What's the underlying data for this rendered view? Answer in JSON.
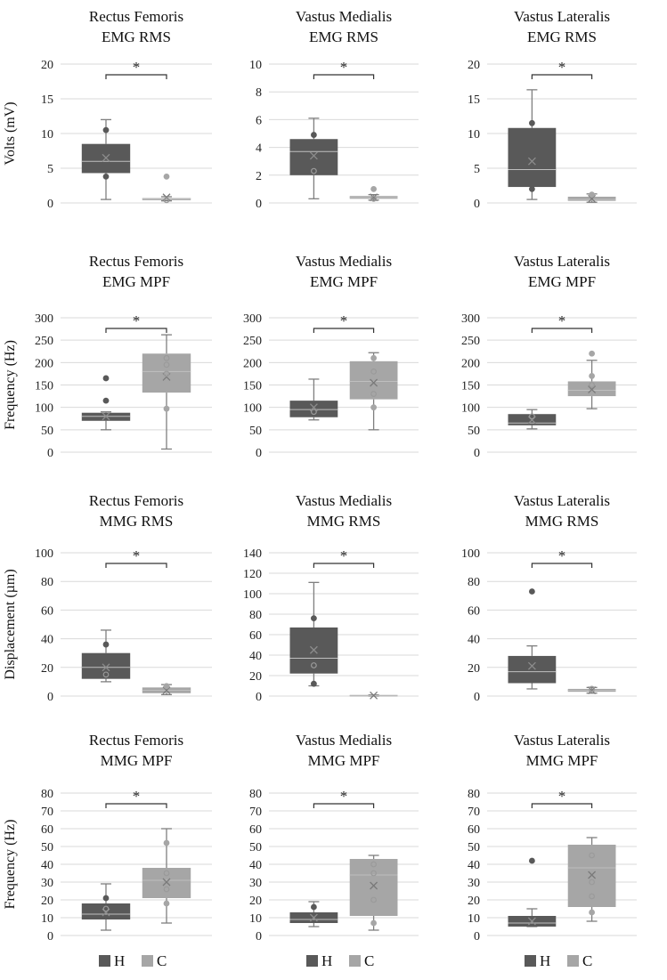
{
  "colors": {
    "H": "#595959",
    "C": "#a6a6a6",
    "grid": "#d9d9d9",
    "whisker": "#7f7f7f",
    "text": "#222222"
  },
  "legend": [
    {
      "key": "H",
      "label": "H"
    },
    {
      "key": "C",
      "label": "C"
    }
  ],
  "rows": [
    {
      "ylabel": "Volts (mV)"
    },
    {
      "ylabel": "Frequency (Hz)"
    },
    {
      "ylabel": "Displacement  (µm)"
    },
    {
      "ylabel": "Frequency (Hz)"
    }
  ],
  "chart_data": [
    {
      "type": "box",
      "title": [
        "Rectus Femoris",
        "EMG RMS"
      ],
      "ylim": [
        0,
        20
      ],
      "ticks": [
        0,
        5,
        10,
        15,
        20
      ],
      "significance": "*",
      "series": [
        {
          "name": "H",
          "min": 0.5,
          "q1": 4.3,
          "median": 6.0,
          "q3": 8.5,
          "max": 12.0,
          "mean": 6.5,
          "points": [
            3.8,
            10.5
          ]
        },
        {
          "name": "C",
          "min": 0.3,
          "q1": 0.4,
          "median": 0.6,
          "q3": 0.7,
          "max": 0.9,
          "mean": 0.8,
          "points": [
            3.8,
            0.4
          ]
        }
      ]
    },
    {
      "type": "box",
      "title": [
        "Vastus Medialis",
        "EMG RMS"
      ],
      "ylim": [
        0,
        10
      ],
      "ticks": [
        0,
        2,
        4,
        6,
        8,
        10
      ],
      "significance": "*",
      "series": [
        {
          "name": "H",
          "min": 0.3,
          "q1": 2.0,
          "median": 3.7,
          "q3": 4.6,
          "max": 6.1,
          "mean": 3.4,
          "points": [
            4.9,
            2.3
          ]
        },
        {
          "name": "C",
          "min": 0.2,
          "q1": 0.3,
          "median": 0.4,
          "q3": 0.5,
          "max": 0.6,
          "mean": 0.4,
          "points": [
            1.0,
            0.3
          ]
        }
      ]
    },
    {
      "type": "box",
      "title": [
        "Vastus Lateralis",
        "EMG RMS"
      ],
      "ylim": [
        0,
        20
      ],
      "ticks": [
        0,
        5,
        10,
        15,
        20
      ],
      "significance": "*",
      "series": [
        {
          "name": "H",
          "min": 0.5,
          "q1": 2.3,
          "median": 4.8,
          "q3": 10.8,
          "max": 16.3,
          "mean": 6.0,
          "points": [
            11.5,
            2.0
          ]
        },
        {
          "name": "C",
          "min": 0.1,
          "q1": 0.3,
          "median": 0.5,
          "q3": 0.9,
          "max": 1.3,
          "mean": 0.6,
          "points": [
            1.2
          ]
        }
      ]
    },
    {
      "type": "box",
      "title": [
        "Rectus Femoris",
        "EMG MPF"
      ],
      "ylim": [
        0,
        300
      ],
      "ticks": [
        0,
        50,
        100,
        150,
        200,
        250,
        300
      ],
      "significance": "*",
      "series": [
        {
          "name": "H",
          "min": 50,
          "q1": 70,
          "median": 80,
          "q3": 88,
          "max": 90,
          "mean": 80,
          "points": [
            165,
            115
          ]
        },
        {
          "name": "C",
          "min": 7,
          "q1": 133,
          "median": 180,
          "q3": 220,
          "max": 262,
          "mean": 168,
          "points": [
            210,
            97,
            195,
            175
          ]
        }
      ]
    },
    {
      "type": "box",
      "title": [
        "Vastus Medialis",
        "EMG MPF"
      ],
      "ylim": [
        0,
        300
      ],
      "ticks": [
        0,
        50,
        100,
        150,
        200,
        250,
        300
      ],
      "significance": "*",
      "series": [
        {
          "name": "H",
          "min": 72,
          "q1": 78,
          "median": 95,
          "q3": 115,
          "max": 163,
          "mean": 100,
          "points": [
            90
          ]
        },
        {
          "name": "C",
          "min": 50,
          "q1": 118,
          "median": 158,
          "q3": 203,
          "max": 222,
          "mean": 155,
          "points": [
            210,
            180,
            100,
            130
          ]
        }
      ]
    },
    {
      "type": "box",
      "title": [
        "Vastus Lateralis",
        "EMG MPF"
      ],
      "ylim": [
        0,
        300
      ],
      "ticks": [
        0,
        50,
        100,
        150,
        200,
        250,
        300
      ],
      "significance": "*",
      "series": [
        {
          "name": "H",
          "min": 52,
          "q1": 60,
          "median": 65,
          "q3": 85,
          "max": 95,
          "mean": 72,
          "points": [
            80
          ]
        },
        {
          "name": "C",
          "min": 97,
          "q1": 125,
          "median": 138,
          "q3": 158,
          "max": 205,
          "mean": 140,
          "points": [
            220,
            170,
            150
          ]
        }
      ]
    },
    {
      "type": "box",
      "title": [
        "Rectus Femoris",
        "MMG RMS"
      ],
      "ylim": [
        0,
        100
      ],
      "ticks": [
        0,
        20,
        40,
        60,
        80,
        100
      ],
      "significance": "*",
      "series": [
        {
          "name": "H",
          "min": 10,
          "q1": 12,
          "median": 20,
          "q3": 30,
          "max": 46,
          "mean": 20,
          "points": [
            36,
            15
          ]
        },
        {
          "name": "C",
          "min": 1,
          "q1": 2,
          "median": 4,
          "q3": 6,
          "max": 8,
          "mean": 4,
          "points": [
            7
          ]
        }
      ]
    },
    {
      "type": "box",
      "title": [
        "Vastus Medialis",
        "MMG RMS"
      ],
      "ylim": [
        0,
        140
      ],
      "ticks": [
        0,
        20,
        40,
        60,
        80,
        100,
        120,
        140
      ],
      "significance": "*",
      "series": [
        {
          "name": "H",
          "min": 10,
          "q1": 22,
          "median": 37,
          "q3": 67,
          "max": 111,
          "mean": 45,
          "points": [
            76,
            12,
            30
          ]
        },
        {
          "name": "C",
          "min": 0,
          "q1": 0.3,
          "median": 0.6,
          "q3": 1,
          "max": 1.2,
          "mean": 0.6,
          "points": []
        }
      ]
    },
    {
      "type": "box",
      "title": [
        "Vastus Lateralis",
        "MMG RMS"
      ],
      "ylim": [
        0,
        100
      ],
      "ticks": [
        0,
        20,
        40,
        60,
        80,
        100
      ],
      "significance": "*",
      "series": [
        {
          "name": "H",
          "min": 5,
          "q1": 9,
          "median": 17,
          "q3": 28,
          "max": 35,
          "mean": 21,
          "points": [
            73
          ]
        },
        {
          "name": "C",
          "min": 2,
          "q1": 3,
          "median": 4,
          "q3": 5,
          "max": 6,
          "mean": 4,
          "points": [
            5
          ]
        }
      ]
    },
    {
      "type": "box",
      "title": [
        "Rectus Femoris",
        "MMG MPF"
      ],
      "ylim": [
        0,
        80
      ],
      "ticks": [
        0,
        10,
        20,
        30,
        40,
        50,
        60,
        70,
        80
      ],
      "significance": "*",
      "series": [
        {
          "name": "H",
          "min": 3,
          "q1": 9,
          "median": 12,
          "q3": 18,
          "max": 29,
          "mean": 13,
          "points": [
            21,
            15
          ]
        },
        {
          "name": "C",
          "min": 7,
          "q1": 21,
          "median": 31,
          "q3": 38,
          "max": 60,
          "mean": 30,
          "points": [
            52,
            18,
            35,
            26
          ]
        }
      ]
    },
    {
      "type": "box",
      "title": [
        "Vastus Medialis",
        "MMG MPF"
      ],
      "ylim": [
        0,
        80
      ],
      "ticks": [
        0,
        10,
        20,
        30,
        40,
        50,
        60,
        70,
        80
      ],
      "significance": "*",
      "series": [
        {
          "name": "H",
          "min": 5,
          "q1": 7,
          "median": 9,
          "q3": 13,
          "max": 19,
          "mean": 10,
          "points": [
            16
          ]
        },
        {
          "name": "C",
          "min": 3,
          "q1": 11,
          "median": 34,
          "q3": 43,
          "max": 45,
          "mean": 28,
          "points": [
            40,
            20,
            7,
            35
          ]
        }
      ]
    },
    {
      "type": "box",
      "title": [
        "Vastus Lateralis",
        "MMG MPF"
      ],
      "ylim": [
        0,
        80
      ],
      "ticks": [
        0,
        10,
        20,
        30,
        40,
        50,
        60,
        70,
        80
      ],
      "significance": "*",
      "series": [
        {
          "name": "H",
          "min": 5,
          "q1": 5,
          "median": 7,
          "q3": 11,
          "max": 15,
          "mean": 8,
          "points": [
            42
          ]
        },
        {
          "name": "C",
          "min": 8,
          "q1": 16,
          "median": 38,
          "q3": 51,
          "max": 55,
          "mean": 34,
          "points": [
            30,
            13,
            45,
            22
          ]
        }
      ]
    }
  ]
}
